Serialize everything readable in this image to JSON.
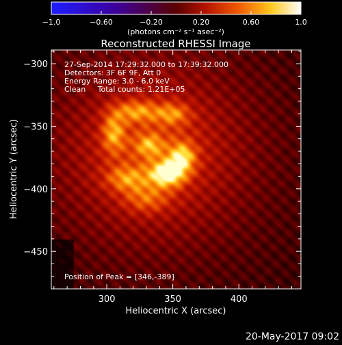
{
  "colorbar": {
    "ticks": [
      "−1.0",
      "−0.60",
      "−0.20",
      "0.20",
      "0.60",
      "1.0"
    ],
    "units_label": "(photons cm⁻² s⁻¹ asec⁻²)",
    "range": [
      -1.0,
      1.0
    ],
    "colormap": "rainbow-heat (blue-purple-red-orange-yellow-white)"
  },
  "chart_data": {
    "type": "heatmap",
    "title": "Reconstructed RHESSI Image",
    "xlabel": "Heliocentric X (arcsec)",
    "ylabel": "Heliocentric Y (arcsec)",
    "xlim": [
      258,
      447
    ],
    "ylim": [
      -480,
      -289
    ],
    "x_ticks": [
      300,
      350,
      400
    ],
    "y_ticks": [
      -300,
      -350,
      -400,
      -450
    ],
    "x_tick_labels": [
      "300",
      "350",
      "400"
    ],
    "y_tick_labels": [
      "−300",
      "−350",
      "−400",
      "−450"
    ],
    "annotations": [
      "27-Sep-2014 17:29:32.000 to 17:39:32.000",
      "Detectors: 3F 6F 9F, Att 0",
      "Energy Range: 3.0 - 6.0 keV",
      "Clean     Total counts: 1.21E+05"
    ],
    "peak_label": "Position of Peak = [346,-389]",
    "peak": [
      346,
      -389
    ],
    "sources": [
      {
        "x": 346,
        "y": -388,
        "sx": 9,
        "sy": 7,
        "amp": 1.0
      },
      {
        "x": 357,
        "y": -375,
        "sx": 7,
        "sy": 8,
        "amp": 0.75
      },
      {
        "x": 332,
        "y": -365,
        "sx": 7,
        "sy": 6,
        "amp": 0.45
      },
      {
        "x": 305,
        "y": -355,
        "sx": 6,
        "sy": 11,
        "amp": 0.6
      },
      {
        "x": 322,
        "y": -338,
        "sx": 12,
        "sy": 6,
        "amp": 0.55
      },
      {
        "x": 350,
        "y": -340,
        "sx": 9,
        "sy": 6,
        "amp": 0.5
      },
      {
        "x": 315,
        "y": -392,
        "sx": 11,
        "sy": 7,
        "amp": 0.5
      },
      {
        "x": 330,
        "y": -408,
        "sx": 12,
        "sy": 8,
        "amp": 0.4
      }
    ]
  },
  "footer_date": "20-May-2017 09:02"
}
